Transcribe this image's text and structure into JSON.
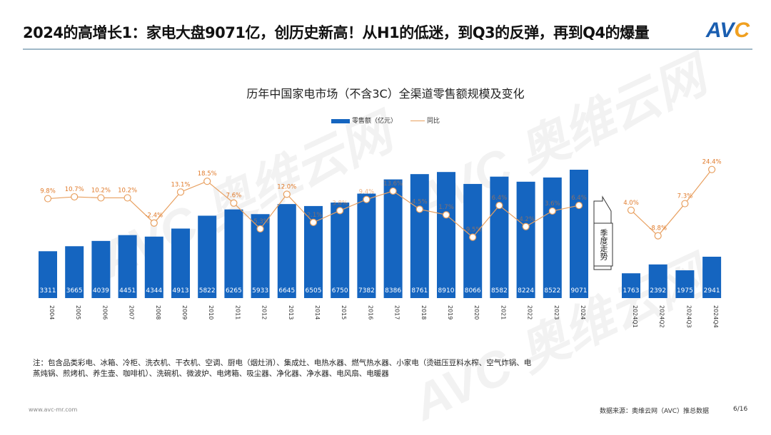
{
  "header": {
    "title": "2024的高增长1：家电大盘9071亿，创历史新高！从H1的低迷，到Q3的反弹，再到Q4的爆量",
    "logo": "AVC"
  },
  "watermark": "AVC 奥维云网 ALL VIEW CLOUD",
  "chart_data": [
    {
      "type": "bar",
      "title": "历年中国家电市场（不含3C）全渠道零售额规模及变化",
      "categories": [
        "2004",
        "2005",
        "2006",
        "2007",
        "2008",
        "2009",
        "2010",
        "2011",
        "2012",
        "2013",
        "2014",
        "2015",
        "2016",
        "2017",
        "2018",
        "2019",
        "2020",
        "2021",
        "2022",
        "2023",
        "2024"
      ],
      "series": [
        {
          "name": "零售额（亿元）",
          "type": "bar",
          "values": [
            3311,
            3665,
            4039,
            4451,
            4344,
            4913,
            5822,
            6265,
            5933,
            6645,
            6505,
            6750,
            7382,
            8386,
            8761,
            8910,
            8066,
            8582,
            8224,
            8522,
            9071
          ]
        },
        {
          "name": "同比",
          "type": "line",
          "unit": "%",
          "values": [
            9.8,
            10.7,
            10.2,
            10.2,
            -2.4,
            13.1,
            18.5,
            7.6,
            -5.3,
            12.0,
            -2.1,
            3.8,
            9.4,
            13.6,
            4.5,
            1.7,
            -9.5,
            6.4,
            -4.2,
            3.6,
            6.4
          ]
        }
      ],
      "legend": [
        "零售额（亿元）",
        "同比"
      ],
      "legend_placement": "top-center",
      "colors": {
        "bar": "#1565c0",
        "line": "#e8a060",
        "label": "#e07a2a"
      }
    },
    {
      "type": "bar",
      "categories": [
        "2024Q1",
        "2024Q2",
        "2024Q3",
        "2024Q4"
      ],
      "series": [
        {
          "name": "零售额（亿元）",
          "type": "bar",
          "values": [
            1763,
            2392,
            1975,
            2941
          ]
        },
        {
          "name": "同比",
          "type": "line",
          "unit": "%",
          "values": [
            4.0,
            -8.8,
            7.3,
            24.4
          ]
        }
      ]
    }
  ],
  "divider_label": "季度走势",
  "note": "注：包含品类彩电、冰箱、冷柜、洗衣机、干衣机、空调、厨电（烟灶消）、集成灶、电热水器、燃气热水器、小家电（烫磁压豆料水榨、空气炸锅、电蒸炖锅、煎烤机、养生壶、咖啡机）、洗碗机、微波炉、电烤箱、吸尘器、净化器、净水器、电风扇、电暖器",
  "footer": {
    "url": "www.avc-mr.com",
    "source": "数据来源：奥维云网（AVC）推总数据",
    "page": "6/16"
  }
}
